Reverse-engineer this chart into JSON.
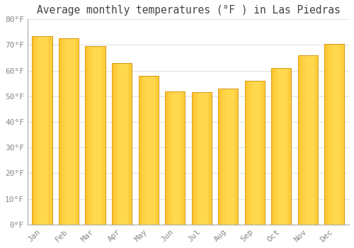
{
  "title": "Average monthly temperatures (°F ) in Las Piedras",
  "months": [
    "Jan",
    "Feb",
    "Mar",
    "Apr",
    "May",
    "Jun",
    "Jul",
    "Aug",
    "Sep",
    "Oct",
    "Nov",
    "Dec"
  ],
  "values": [
    73.5,
    72.5,
    69.5,
    63.0,
    58.0,
    52.0,
    51.5,
    53.0,
    56.0,
    61.0,
    66.0,
    70.5
  ],
  "bar_color_light": "#FFD84D",
  "bar_color_dark": "#F5A800",
  "bar_edge_color": "#CC8800",
  "background_color": "#FFFFFF",
  "plot_bg_color": "#FFFFFF",
  "grid_color": "#DDDDDD",
  "text_color": "#888888",
  "title_color": "#444444",
  "ylim": [
    0,
    80
  ],
  "yticks": [
    0,
    10,
    20,
    30,
    40,
    50,
    60,
    70,
    80
  ],
  "title_fontsize": 10.5,
  "tick_fontsize": 8,
  "bar_width": 0.75
}
